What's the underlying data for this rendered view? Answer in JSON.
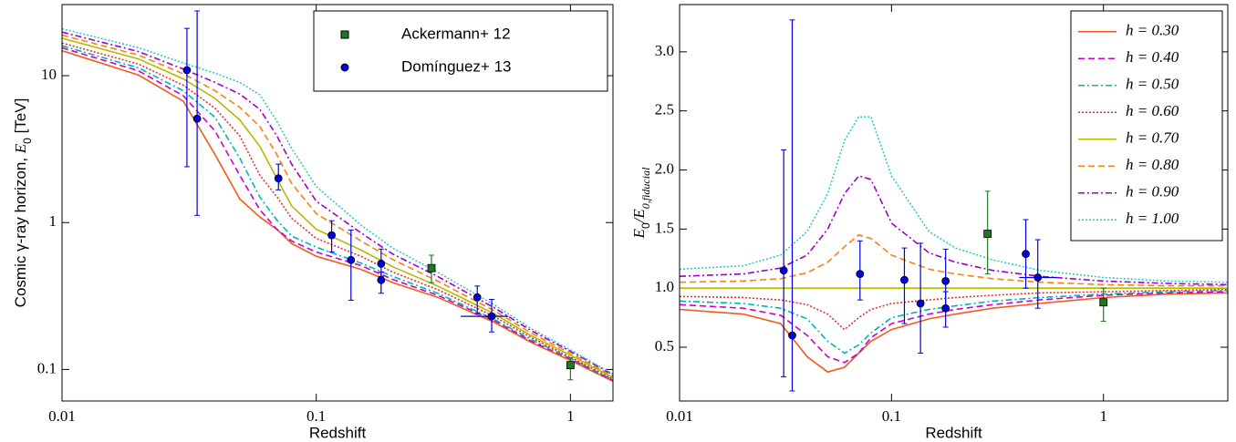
{
  "chart_data": [
    {
      "type": "line",
      "xlabel": "Redshift",
      "ylabel": [
        {
          "text": "Cosmic γ-ray horizon, "
        },
        {
          "text": "E",
          "italic": true
        },
        {
          "text": "0",
          "sub": true
        },
        {
          "text": " [TeV]"
        }
      ],
      "xscale": "log",
      "yscale": "log",
      "xlim": [
        0.01,
        1.47
      ],
      "ylim": [
        0.061,
        30.5
      ],
      "xticks": [
        0.01,
        0.1,
        1
      ],
      "yticks": [
        0.1,
        1,
        10
      ],
      "legend_loc": "upper right",
      "x": [
        0.01,
        0.02,
        0.03,
        0.04,
        0.05,
        0.06,
        0.07,
        0.08,
        0.1,
        0.15,
        0.2,
        0.3,
        0.5,
        0.7,
        1,
        1.47
      ],
      "series": [
        {
          "color": "#f25a1e",
          "dash": "solid",
          "values": [
            14.8,
            10.1,
            6.7,
            2.9,
            1.45,
            1.09,
            0.9,
            0.72,
            0.59,
            0.48,
            0.39,
            0.31,
            0.21,
            0.153,
            0.115,
            0.083
          ]
        },
        {
          "color": "#cc00cc",
          "dash": "dashed",
          "values": [
            15.5,
            10.8,
            7.3,
            4.2,
            2.1,
            1.22,
            0.9,
            0.75,
            0.63,
            0.51,
            0.41,
            0.32,
            0.216,
            0.156,
            0.118,
            0.084
          ]
        },
        {
          "color": "#00b5b5",
          "dash": "dashdot",
          "values": [
            16,
            11.3,
            7.9,
            5.2,
            2.75,
            1.49,
            1.04,
            0.81,
            0.68,
            0.53,
            0.43,
            0.33,
            0.22,
            0.16,
            0.119,
            0.085
          ]
        },
        {
          "color": "#e03030",
          "dash": "dotted",
          "values": [
            16.7,
            12,
            8.6,
            6,
            3.9,
            2.1,
            1.5,
            1.07,
            0.78,
            0.59,
            0.46,
            0.35,
            0.23,
            0.165,
            0.121,
            0.086
          ]
        },
        {
          "color": "#b8b800",
          "dash": "solid",
          "values": [
            18,
            13,
            9.5,
            7,
            5,
            3.3,
            2.0,
            1.3,
            0.9,
            0.65,
            0.5,
            0.37,
            0.24,
            0.17,
            0.125,
            0.088
          ]
        },
        {
          "color": "#ff7f0e",
          "dash": "dashed",
          "values": [
            18.9,
            13.8,
            10.3,
            7.9,
            6.1,
            4.5,
            2.9,
            1.85,
            1.15,
            0.75,
            0.56,
            0.4,
            0.252,
            0.177,
            0.129,
            0.09
          ]
        },
        {
          "color": "#a000cc",
          "dash": "dashdot",
          "values": [
            19.8,
            14.6,
            11.1,
            9,
            7.5,
            5.9,
            3.9,
            2.5,
            1.4,
            0.85,
            0.61,
            0.43,
            0.264,
            0.184,
            0.133,
            0.092
          ]
        },
        {
          "color": "#30c8c8",
          "dash": "dotted",
          "values": [
            20.9,
            15.5,
            12.2,
            10.4,
            9,
            7.4,
            4.9,
            3.2,
            1.76,
            0.96,
            0.67,
            0.46,
            0.276,
            0.19,
            0.136,
            0.093
          ]
        }
      ],
      "points": [
        {
          "name": "Ackermann+ 12",
          "marker": "square",
          "color": "#1e7a1e",
          "x": [
            0.284,
            1.0
          ],
          "values": [
            0.49,
            0.107
          ],
          "ylow": [
            0.39,
            0.085
          ],
          "yhigh": [
            0.6,
            0.12
          ],
          "xlow": [
            null,
            null
          ],
          "xhigh": [
            null,
            null
          ]
        },
        {
          "name": "Domínguez+ 13",
          "marker": "circle",
          "color": "#0000dd",
          "x": [
            0.031,
            0.034,
            0.071,
            0.115,
            0.137,
            0.18,
            0.18,
            0.43,
            0.49
          ],
          "values": [
            10.9,
            5.1,
            2.0,
            0.82,
            0.556,
            0.525,
            0.406,
            0.31,
            0.23
          ],
          "ylow": [
            2.4,
            1.12,
            1.67,
            0.63,
            0.296,
            0.43,
            0.33,
            0.24,
            0.18
          ],
          "yhigh": [
            21,
            27.6,
            2.5,
            1.03,
            0.89,
            0.66,
            0.46,
            0.37,
            0.3
          ],
          "xlow": [
            null,
            null,
            null,
            null,
            null,
            null,
            null,
            null,
            0.37
          ],
          "xhigh": [
            null,
            null,
            null,
            null,
            null,
            null,
            null,
            null,
            0.57
          ]
        }
      ]
    },
    {
      "type": "line",
      "xlabel": "Redshift",
      "ylabel": [
        {
          "text": "E",
          "italic": true
        },
        {
          "text": "0",
          "sub": true
        },
        {
          "text": "/",
          "italic": true
        },
        {
          "text": "E",
          "italic": true
        },
        {
          "text": "0,fiducial",
          "sub": true,
          "italic": true
        }
      ],
      "xscale": "log",
      "yscale": "linear",
      "xlim": [
        0.01,
        3.86
      ],
      "ylim": [
        0.045,
        3.4
      ],
      "xticks": [
        0.01,
        0.1,
        1
      ],
      "yticks": [
        0.5,
        {
          "value": 1,
          "label": "1.0"
        },
        1.5,
        {
          "value": 2,
          "label": "2.0"
        },
        2.5,
        {
          "value": 3,
          "label": "3.0"
        }
      ],
      "legend_loc": "upper right",
      "x": [
        0.01,
        0.02,
        0.03,
        0.04,
        0.05,
        0.06,
        0.07,
        0.08,
        0.1,
        0.15,
        0.2,
        0.3,
        0.5,
        1,
        2,
        3.86
      ],
      "series": [
        {
          "name": "h = 0.30",
          "color": "#f25a1e",
          "dash": "solid",
          "values": [
            0.82,
            0.78,
            0.7,
            0.42,
            0.29,
            0.33,
            0.45,
            0.55,
            0.65,
            0.74,
            0.78,
            0.83,
            0.87,
            0.92,
            0.95,
            0.96
          ]
        },
        {
          "name": "h = 0.40",
          "color": "#cc00cc",
          "dash": "dashed",
          "values": [
            0.86,
            0.83,
            0.77,
            0.6,
            0.42,
            0.37,
            0.45,
            0.58,
            0.7,
            0.78,
            0.82,
            0.86,
            0.9,
            0.94,
            0.96,
            0.97
          ]
        },
        {
          "name": "h = 0.50",
          "color": "#00b5b5",
          "dash": "dashdot",
          "values": [
            0.89,
            0.87,
            0.83,
            0.74,
            0.55,
            0.45,
            0.52,
            0.62,
            0.75,
            0.82,
            0.85,
            0.89,
            0.92,
            0.95,
            0.97,
            0.98
          ]
        },
        {
          "name": "h = 0.60",
          "color": "#e03030",
          "dash": "dotted",
          "values": [
            0.93,
            0.92,
            0.9,
            0.86,
            0.78,
            0.65,
            0.75,
            0.82,
            0.87,
            0.9,
            0.92,
            0.94,
            0.96,
            0.97,
            0.98,
            0.99
          ]
        },
        {
          "name": "h = 0.70",
          "color": "#b8b800",
          "dash": "solid",
          "values": [
            1,
            1,
            1,
            1,
            1,
            1,
            1,
            1,
            1,
            1,
            1,
            1,
            1,
            1,
            1,
            1
          ]
        },
        {
          "name": "h = 0.80",
          "color": "#ff7f0e",
          "dash": "dashed",
          "values": [
            1.05,
            1.06,
            1.08,
            1.13,
            1.22,
            1.35,
            1.45,
            1.42,
            1.28,
            1.16,
            1.12,
            1.08,
            1.05,
            1.03,
            1.02,
            1.02
          ]
        },
        {
          "name": "h = 0.90",
          "color": "#a000cc",
          "dash": "dashdot",
          "values": [
            1.1,
            1.12,
            1.17,
            1.28,
            1.5,
            1.8,
            1.95,
            1.92,
            1.55,
            1.3,
            1.22,
            1.15,
            1.1,
            1.06,
            1.04,
            1.03
          ]
        },
        {
          "name": "h = 1.00",
          "color": "#30c8c8",
          "dash": "dotted",
          "values": [
            1.16,
            1.19,
            1.28,
            1.48,
            1.8,
            2.25,
            2.45,
            2.45,
            1.95,
            1.48,
            1.34,
            1.24,
            1.15,
            1.09,
            1.06,
            1.05
          ]
        }
      ],
      "points": [
        {
          "marker": "square",
          "color": "#1e7a1e",
          "x": [
            0.284,
            1.0
          ],
          "values": [
            1.46,
            0.88
          ],
          "ylow": [
            1.12,
            0.72
          ],
          "yhigh": [
            1.82,
            1.0
          ],
          "xlow": [
            null,
            null
          ],
          "xhigh": [
            null,
            null
          ]
        },
        {
          "marker": "circle",
          "color": "#0000dd",
          "x": [
            0.031,
            0.034,
            0.071,
            0.115,
            0.137,
            0.18,
            0.18,
            0.43,
            0.49
          ],
          "values": [
            1.15,
            0.6,
            1.12,
            1.07,
            0.87,
            1.06,
            0.83,
            1.29,
            1.09
          ],
          "ylow": [
            0.25,
            0.13,
            0.9,
            0.7,
            0.45,
            0.82,
            0.67,
            1.0,
            0.83
          ],
          "yhigh": [
            2.17,
            3.27,
            1.4,
            1.34,
            1.38,
            1.33,
            0.97,
            1.58,
            1.41
          ],
          "xlow": [
            null,
            null,
            null,
            null,
            null,
            null,
            null,
            null,
            0.4
          ],
          "xhigh": [
            null,
            null,
            null,
            null,
            null,
            null,
            null,
            null,
            0.6
          ]
        }
      ]
    }
  ]
}
